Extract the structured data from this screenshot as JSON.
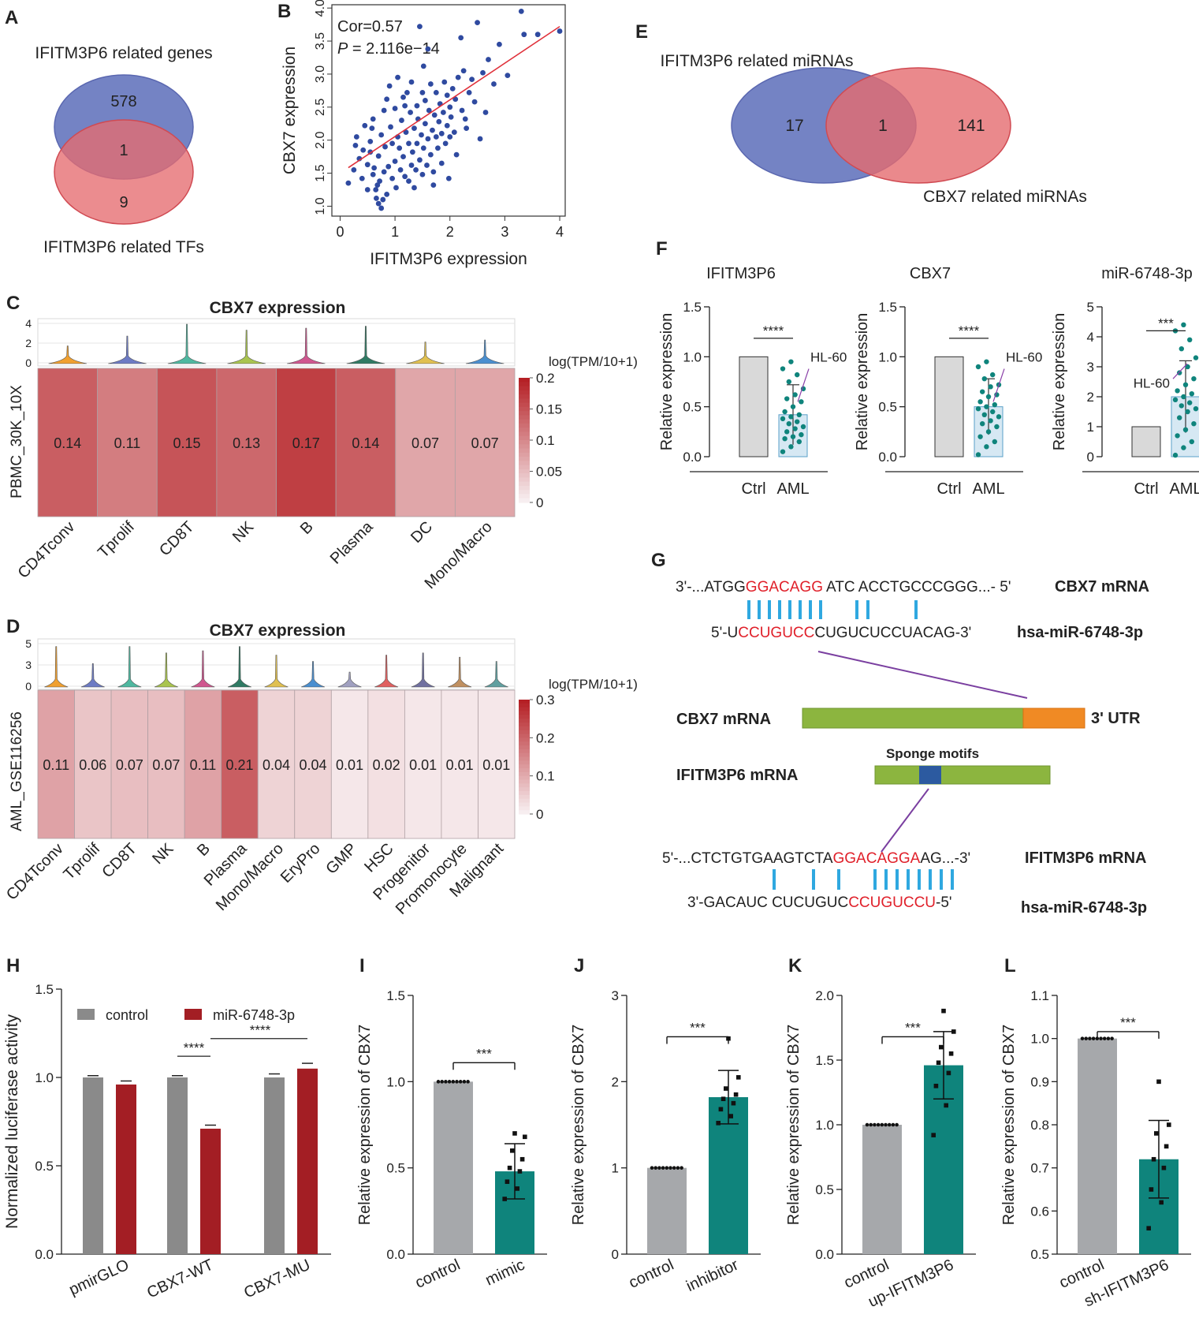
{
  "colors": {
    "blue": "#7483c4",
    "red": "#e56b6f",
    "purple": "#9c5574",
    "heat_dark": "#b52025",
    "heat_light": "#f7eef0",
    "teal": "#0f847c",
    "gray_bar": "#a6a8ab",
    "darkred": "#a31e24",
    "midgray": "#8a8a8a",
    "scatter_dot": "#2f4aa0",
    "fit_line": "#e0303a"
  },
  "panel_letters": {
    "A": "A",
    "B": "B",
    "C": "C",
    "D": "D",
    "E": "E",
    "F": "F",
    "G": "G",
    "H": "H",
    "I": "I",
    "J": "J",
    "K": "K",
    "L": "L"
  },
  "panelA": {
    "top_label": "IFITM3P6 related genes",
    "bottom_label": "IFITM3P6 related TFs",
    "only_genes": "578",
    "overlap": "1",
    "only_tfs": "9"
  },
  "panelE": {
    "top_label": "IFITM3P6 related miRNAs",
    "bottom_label": "CBX7 related miRNAs",
    "only_left": "17",
    "overlap": "1",
    "only_right": "141"
  },
  "panelG": {
    "seq1_prefix": "3'-...ATGG",
    "seq1_red": "GGACAGG",
    "seq1_rest": "ATC ACCTGCCCGGG...- 5'",
    "seq1_label": "CBX7 mRNA",
    "seq2_prefix": "5'-U",
    "seq2_red": "CCUGUCC",
    "seq2_rest": "CUGUCUCCUACAG-3'",
    "seq2_label": "hsa-miR-6748-3p",
    "cbx7_label": "CBX7 mRNA",
    "utr_label": "3' UTR",
    "sponge_label": "Sponge motifs",
    "ifitm_label": "IFITM3P6 mRNA",
    "seq3_prefix": "5'-...CTCTGTGAAGTCTA",
    "seq3_red": "GGACAGGA",
    "seq3_rest": "AG...-3'",
    "seq3_label": "IFITM3P6 mRNA",
    "seq4_prefix": "3'-GACAUC CUCUGUC",
    "seq4_red": "CCUGUCCU",
    "seq4_rest": "-5'",
    "seq4_label": "hsa-miR-6748-3p"
  },
  "chart_data": [
    {
      "id": "B",
      "type": "scatter",
      "title": "",
      "xlabel": "IFITM3P6 expression",
      "ylabel": "CBX7 expression",
      "annotation_cor": "Cor=0.57",
      "annotation_p_italic": "P",
      "annotation_p": " = 2.116e−14",
      "xlim": [
        -0.15,
        4.1
      ],
      "ylim": [
        0.85,
        4.05
      ],
      "xticks": [
        0,
        1,
        2,
        3,
        4
      ],
      "yticks": [
        1.0,
        1.5,
        2.0,
        2.5,
        3.0,
        3.5,
        4.0
      ],
      "fit": {
        "intercept": 1.5,
        "slope": 0.555
      },
      "points": [
        [
          0.15,
          1.35
        ],
        [
          0.25,
          1.55
        ],
        [
          0.28,
          1.92
        ],
        [
          0.3,
          2.05
        ],
        [
          0.35,
          1.72
        ],
        [
          0.4,
          1.42
        ],
        [
          0.45,
          2.22
        ],
        [
          0.5,
          1.63
        ],
        [
          0.5,
          1.25
        ],
        [
          0.55,
          1.98
        ],
        [
          0.55,
          1.82
        ],
        [
          0.6,
          2.32
        ],
        [
          0.6,
          1.48
        ],
        [
          0.65,
          1.25
        ],
        [
          0.66,
          1.12
        ],
        [
          0.7,
          1.04
        ],
        [
          0.7,
          1.76
        ],
        [
          0.72,
          1.38
        ],
        [
          0.75,
          0.97
        ],
        [
          0.75,
          2.08
        ],
        [
          0.8,
          1.52
        ],
        [
          0.8,
          2.45
        ],
        [
          0.82,
          1.9
        ],
        [
          0.85,
          2.62
        ],
        [
          0.85,
          1.18
        ],
        [
          0.88,
          1.6
        ],
        [
          0.9,
          2.82
        ],
        [
          0.92,
          2.2
        ],
        [
          0.95,
          1.42
        ],
        [
          0.95,
          1.95
        ],
        [
          1.0,
          2.48
        ],
        [
          1.0,
          1.68
        ],
        [
          1.02,
          1.28
        ],
        [
          1.05,
          2.05
        ],
        [
          1.08,
          1.88
        ],
        [
          1.1,
          1.55
        ],
        [
          1.12,
          2.3
        ],
        [
          1.15,
          2.65
        ],
        [
          1.15,
          1.75
        ],
        [
          1.18,
          1.45
        ],
        [
          1.2,
          2.12
        ],
        [
          1.22,
          2.72
        ],
        [
          1.25,
          1.95
        ],
        [
          1.25,
          1.38
        ],
        [
          1.28,
          2.42
        ],
        [
          1.3,
          1.62
        ],
        [
          1.3,
          2.88
        ],
        [
          1.32,
          1.82
        ],
        [
          1.35,
          2.18
        ],
        [
          1.35,
          1.28
        ],
        [
          1.38,
          1.55
        ],
        [
          1.4,
          2.52
        ],
        [
          1.4,
          1.95
        ],
        [
          1.42,
          2.32
        ],
        [
          1.45,
          3.72
        ],
        [
          1.45,
          1.7
        ],
        [
          1.48,
          2.08
        ],
        [
          1.5,
          2.72
        ],
        [
          1.5,
          1.48
        ],
        [
          1.52,
          1.88
        ],
        [
          1.55,
          2.25
        ],
        [
          1.55,
          2.6
        ],
        [
          1.58,
          1.62
        ],
        [
          1.6,
          2.02
        ],
        [
          1.6,
          3.38
        ],
        [
          1.62,
          2.45
        ],
        [
          1.65,
          1.78
        ],
        [
          1.65,
          2.85
        ],
        [
          1.68,
          2.15
        ],
        [
          1.7,
          1.52
        ],
        [
          1.72,
          2.38
        ],
        [
          1.75,
          2.05
        ],
        [
          1.75,
          2.72
        ],
        [
          1.78,
          1.88
        ],
        [
          1.8,
          2.28
        ],
        [
          1.82,
          2.55
        ],
        [
          1.85,
          1.65
        ],
        [
          1.85,
          2.1
        ],
        [
          1.88,
          2.42
        ],
        [
          1.9,
          2.88
        ],
        [
          1.92,
          1.95
        ],
        [
          1.95,
          2.22
        ],
        [
          1.95,
          2.68
        ],
        [
          1.98,
          1.42
        ],
        [
          2.0,
          2.5
        ],
        [
          2.0,
          2.05
        ],
        [
          2.02,
          2.35
        ],
        [
          2.05,
          2.78
        ],
        [
          2.08,
          2.12
        ],
        [
          2.1,
          2.62
        ],
        [
          2.12,
          1.78
        ],
        [
          2.15,
          2.95
        ],
        [
          2.2,
          3.55
        ],
        [
          2.22,
          2.45
        ],
        [
          2.25,
          3.05
        ],
        [
          2.3,
          2.18
        ],
        [
          2.35,
          2.72
        ],
        [
          2.4,
          2.92
        ],
        [
          2.45,
          2.58
        ],
        [
          2.5,
          3.78
        ],
        [
          2.55,
          2.02
        ],
        [
          2.6,
          3.02
        ],
        [
          2.65,
          2.42
        ],
        [
          2.7,
          3.22
        ],
        [
          2.8,
          2.85
        ],
        [
          2.9,
          3.45
        ],
        [
          3.05,
          2.98
        ],
        [
          3.3,
          3.95
        ],
        [
          3.35,
          3.6
        ],
        [
          3.6,
          3.6
        ],
        [
          4.0,
          3.65
        ],
        [
          0.42,
          1.85
        ],
        [
          0.62,
          1.58
        ],
        [
          0.58,
          2.18
        ],
        [
          0.78,
          1.1
        ],
        [
          0.68,
          1.32
        ],
        [
          1.05,
          2.95
        ],
        [
          1.18,
          2.52
        ],
        [
          1.52,
          3.12
        ],
        [
          1.7,
          1.32
        ],
        [
          2.28,
          2.32
        ]
      ]
    },
    {
      "id": "C",
      "type": "heatmap",
      "title": "CBX7 expression",
      "row_label": "PBMC_30K_10X",
      "colorbar_title": "log(TPM/10+1)",
      "colorbar_ticks": [
        "0.2",
        "0.15",
        "0.1",
        "0.05",
        "0"
      ],
      "colorbar_max": 0.2,
      "violin_ticks": [
        "4",
        "2",
        "0"
      ],
      "categories": [
        "CD4Tconv",
        "Tprolif",
        "CD8T",
        "NK",
        "B",
        "Plasma",
        "DC",
        "Mono/Macro"
      ],
      "values": [
        0.14,
        0.11,
        0.15,
        0.13,
        0.17,
        0.14,
        0.07,
        0.07
      ],
      "value_labels": [
        "0.14",
        "0.11",
        "0.15",
        "0.13",
        "0.17",
        "0.14",
        "0.07",
        "0.07"
      ],
      "violin_heights": [
        0.45,
        0.7,
        1.0,
        0.85,
        0.9,
        0.95,
        0.55,
        0.6
      ],
      "violin_colors": [
        "#f0a030",
        "#6d7bc4",
        "#4fb8a0",
        "#a9c44f",
        "#d0578f",
        "#2f7a63",
        "#e0c050",
        "#4a8fd0"
      ]
    },
    {
      "id": "D",
      "type": "heatmap",
      "title": "CBX7 expression",
      "row_label": "AML_GSE116256",
      "colorbar_title": "log(TPM/10+1)",
      "colorbar_ticks": [
        "0.3",
        "0.2",
        "0.1",
        "0"
      ],
      "colorbar_max": 0.3,
      "violin_ticks": [
        "5",
        "3",
        "0"
      ],
      "categories": [
        "CD4Tconv",
        "Tprolif",
        "CD8T",
        "NK",
        "B",
        "Plasma",
        "Mono/Macro",
        "EryPro",
        "GMP",
        "HSC",
        "Progenitor",
        "Promonocyte",
        "Malignant"
      ],
      "values": [
        0.11,
        0.06,
        0.07,
        0.07,
        0.11,
        0.21,
        0.04,
        0.04,
        0.01,
        0.02,
        0.01,
        0.01,
        0.01
      ],
      "value_labels": [
        "0.11",
        "0.06",
        "0.07",
        "0.07",
        "0.11",
        "0.21",
        "0.04",
        "0.04",
        "0.01",
        "0.02",
        "0.01",
        "0.01",
        "0.01"
      ],
      "violin_heights": [
        0.95,
        0.55,
        0.95,
        0.8,
        0.85,
        0.95,
        0.75,
        0.6,
        0.35,
        0.75,
        0.8,
        0.7,
        0.6
      ],
      "violin_colors": [
        "#f0a030",
        "#6d7bc4",
        "#4fb8a0",
        "#a9c44f",
        "#d0578f",
        "#2f7a63",
        "#e0c050",
        "#4a8fd0",
        "#a0a0c0",
        "#e06060",
        "#7070a0",
        "#c09060",
        "#60a0a0"
      ]
    },
    {
      "id": "F1",
      "type": "bar",
      "title": "IFITM3P6",
      "ylabel": "Relative expression",
      "categories": [
        "Ctrl",
        "AML"
      ],
      "values": [
        1.0,
        0.42
      ],
      "error": 0.3,
      "yticks": [
        "0.0",
        "0.5",
        "1.0",
        "1.5"
      ],
      "ylim": [
        0,
        1.5
      ],
      "sig": "****",
      "callout": "HL-60",
      "points": [
        0.05,
        0.1,
        0.15,
        0.18,
        0.2,
        0.22,
        0.25,
        0.28,
        0.3,
        0.33,
        0.35,
        0.38,
        0.4,
        0.42,
        0.45,
        0.5,
        0.55,
        0.58,
        0.62,
        0.68,
        0.75,
        0.82,
        0.88,
        0.95
      ]
    },
    {
      "id": "F2",
      "type": "bar",
      "title": "CBX7",
      "ylabel": "Relative expression",
      "categories": [
        "Ctrl",
        "AML"
      ],
      "values": [
        1.0,
        0.5
      ],
      "error": 0.28,
      "yticks": [
        "0.0",
        "0.5",
        "1.0",
        "1.5"
      ],
      "ylim": [
        0,
        1.5
      ],
      "sig": "****",
      "callout": "HL-60",
      "points": [
        0.02,
        0.1,
        0.15,
        0.2,
        0.25,
        0.3,
        0.33,
        0.36,
        0.4,
        0.42,
        0.45,
        0.48,
        0.5,
        0.52,
        0.55,
        0.6,
        0.62,
        0.65,
        0.7,
        0.72,
        0.78,
        0.82,
        0.9,
        0.95
      ]
    },
    {
      "id": "F3",
      "type": "bar",
      "title": "miR-6748-3p",
      "ylabel": "Relative expression",
      "categories": [
        "Ctrl",
        "AML"
      ],
      "values": [
        1.0,
        2.0
      ],
      "error": 1.2,
      "yticks": [
        "0",
        "1",
        "2",
        "3",
        "4",
        "5"
      ],
      "ylim": [
        0,
        5
      ],
      "sig": "***",
      "callout": "HL-60",
      "points": [
        0.05,
        0.3,
        0.5,
        0.7,
        0.9,
        1.1,
        1.3,
        1.5,
        1.6,
        1.7,
        1.8,
        1.9,
        2.0,
        2.1,
        2.2,
        2.4,
        2.6,
        2.8,
        3.0,
        3.3,
        3.6,
        3.9,
        4.2,
        4.4
      ]
    },
    {
      "id": "H",
      "type": "bar",
      "ylabel": "Normalized luciferase activity",
      "categories": [
        "pmirGLO",
        "CBX7-WT",
        "CBX7-MU"
      ],
      "series": [
        {
          "name": "control",
          "values": [
            1.0,
            1.0,
            1.0
          ],
          "err": [
            0.01,
            0.01,
            0.02
          ]
        },
        {
          "name": "miR-6748-3p",
          "values": [
            0.96,
            0.71,
            1.05
          ],
          "err": [
            0.02,
            0.02,
            0.03
          ]
        }
      ],
      "yticks": [
        "0.0",
        "0.5",
        "1.0",
        "1.5"
      ],
      "ylim": [
        0,
        1.5
      ],
      "sig1": "****",
      "sig2": "****"
    },
    {
      "id": "I",
      "type": "bar",
      "ylabel": "Relative expression of CBX7",
      "categories": [
        "control",
        "mimic"
      ],
      "values": [
        1.0,
        0.48
      ],
      "err": 0.16,
      "yticks": [
        "0.0",
        "0.5",
        "1.0",
        "1.5"
      ],
      "ylim": [
        0,
        1.5
      ],
      "sig": "***",
      "points": [
        0.32,
        0.38,
        0.42,
        0.48,
        0.5,
        0.55,
        0.6,
        0.68,
        0.7
      ]
    },
    {
      "id": "J",
      "type": "bar",
      "ylabel": "Relative expression of CBX7",
      "categories": [
        "control",
        "inhibitor"
      ],
      "values": [
        1.0,
        1.82
      ],
      "err": 0.31,
      "yticks": [
        "0",
        "1",
        "2",
        "3"
      ],
      "ylim": [
        0,
        3
      ],
      "sig": "***",
      "points": [
        1.52,
        1.6,
        1.68,
        1.75,
        1.8,
        1.85,
        1.92,
        2.05,
        2.5
      ]
    },
    {
      "id": "K",
      "type": "bar",
      "ylabel": "Relative expression of CBX7",
      "categories": [
        "control",
        "up-IFITM3P6"
      ],
      "values": [
        1.0,
        1.46
      ],
      "err": 0.26,
      "yticks": [
        "0.0",
        "0.5",
        "1.0",
        "1.5",
        "2.0"
      ],
      "ylim": [
        0,
        2.0
      ],
      "sig": "***",
      "points": [
        0.92,
        1.15,
        1.3,
        1.4,
        1.48,
        1.55,
        1.6,
        1.72,
        1.88
      ]
    },
    {
      "id": "L",
      "type": "bar",
      "ylabel": "Relative expression of CBX7",
      "categories": [
        "control",
        "sh-IFITM3P6"
      ],
      "values": [
        1.0,
        0.72
      ],
      "err": 0.09,
      "yticks": [
        "0.5",
        "0.6",
        "0.7",
        "0.8",
        "0.9",
        "1.0",
        "1.1"
      ],
      "ylim": [
        0.5,
        1.1
      ],
      "sig": "***",
      "points": [
        0.56,
        0.62,
        0.65,
        0.7,
        0.72,
        0.75,
        0.78,
        0.8,
        0.9
      ]
    }
  ]
}
